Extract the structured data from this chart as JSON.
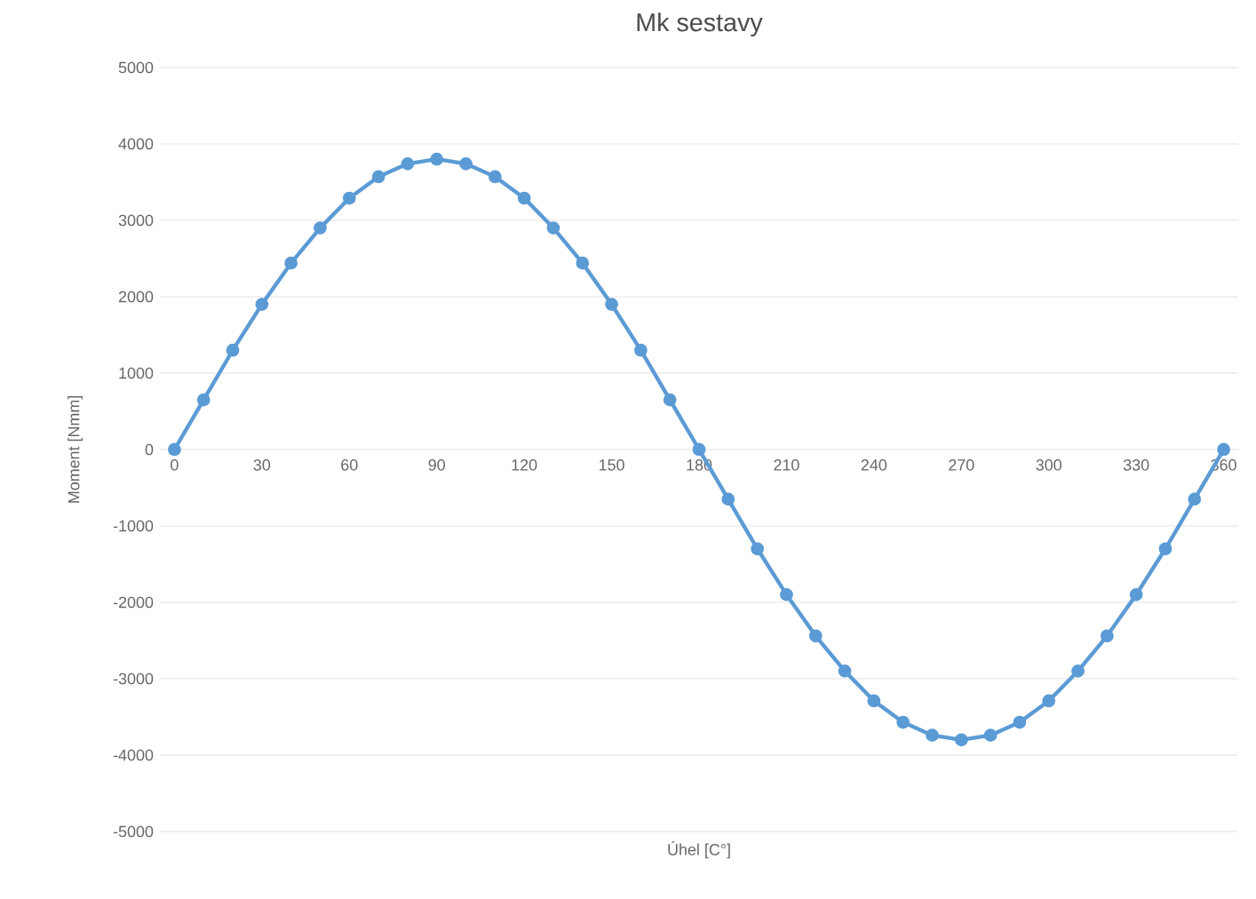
{
  "chart_data": {
    "type": "line",
    "title": "Mk sestavy",
    "xlabel": "Úhel [C°]",
    "ylabel": "Moment [Nmm]",
    "x": [
      0,
      10,
      20,
      30,
      40,
      50,
      60,
      70,
      80,
      90,
      100,
      110,
      120,
      130,
      140,
      150,
      160,
      170,
      180,
      190,
      200,
      210,
      220,
      230,
      240,
      250,
      260,
      270,
      280,
      290,
      300,
      310,
      320,
      330,
      340,
      350,
      360
    ],
    "series": [
      {
        "color": "#5b9bd5",
        "values": [
          0,
          650,
          1300,
          1900,
          2440,
          2900,
          3290,
          3570,
          3740,
          3800,
          3740,
          3570,
          3290,
          2900,
          2440,
          1900,
          1300,
          650,
          0,
          -650,
          -1300,
          -1900,
          -2440,
          -2900,
          -3290,
          -3570,
          -3740,
          -3800,
          -3740,
          -3570,
          -3290,
          -2900,
          -2440,
          -1900,
          -1300,
          -650,
          0
        ]
      }
    ],
    "xlim": [
      -5,
      365
    ],
    "xticks": [
      0,
      30,
      60,
      90,
      120,
      150,
      180,
      210,
      240,
      270,
      300,
      330,
      360
    ],
    "ylim": [
      -5000,
      5000
    ],
    "yticks": [
      -5000,
      -4000,
      -3000,
      -2000,
      -1000,
      0,
      1000,
      2000,
      3000,
      4000,
      5000
    ],
    "grid": "y",
    "marker": "circle",
    "line_style": "solid"
  }
}
